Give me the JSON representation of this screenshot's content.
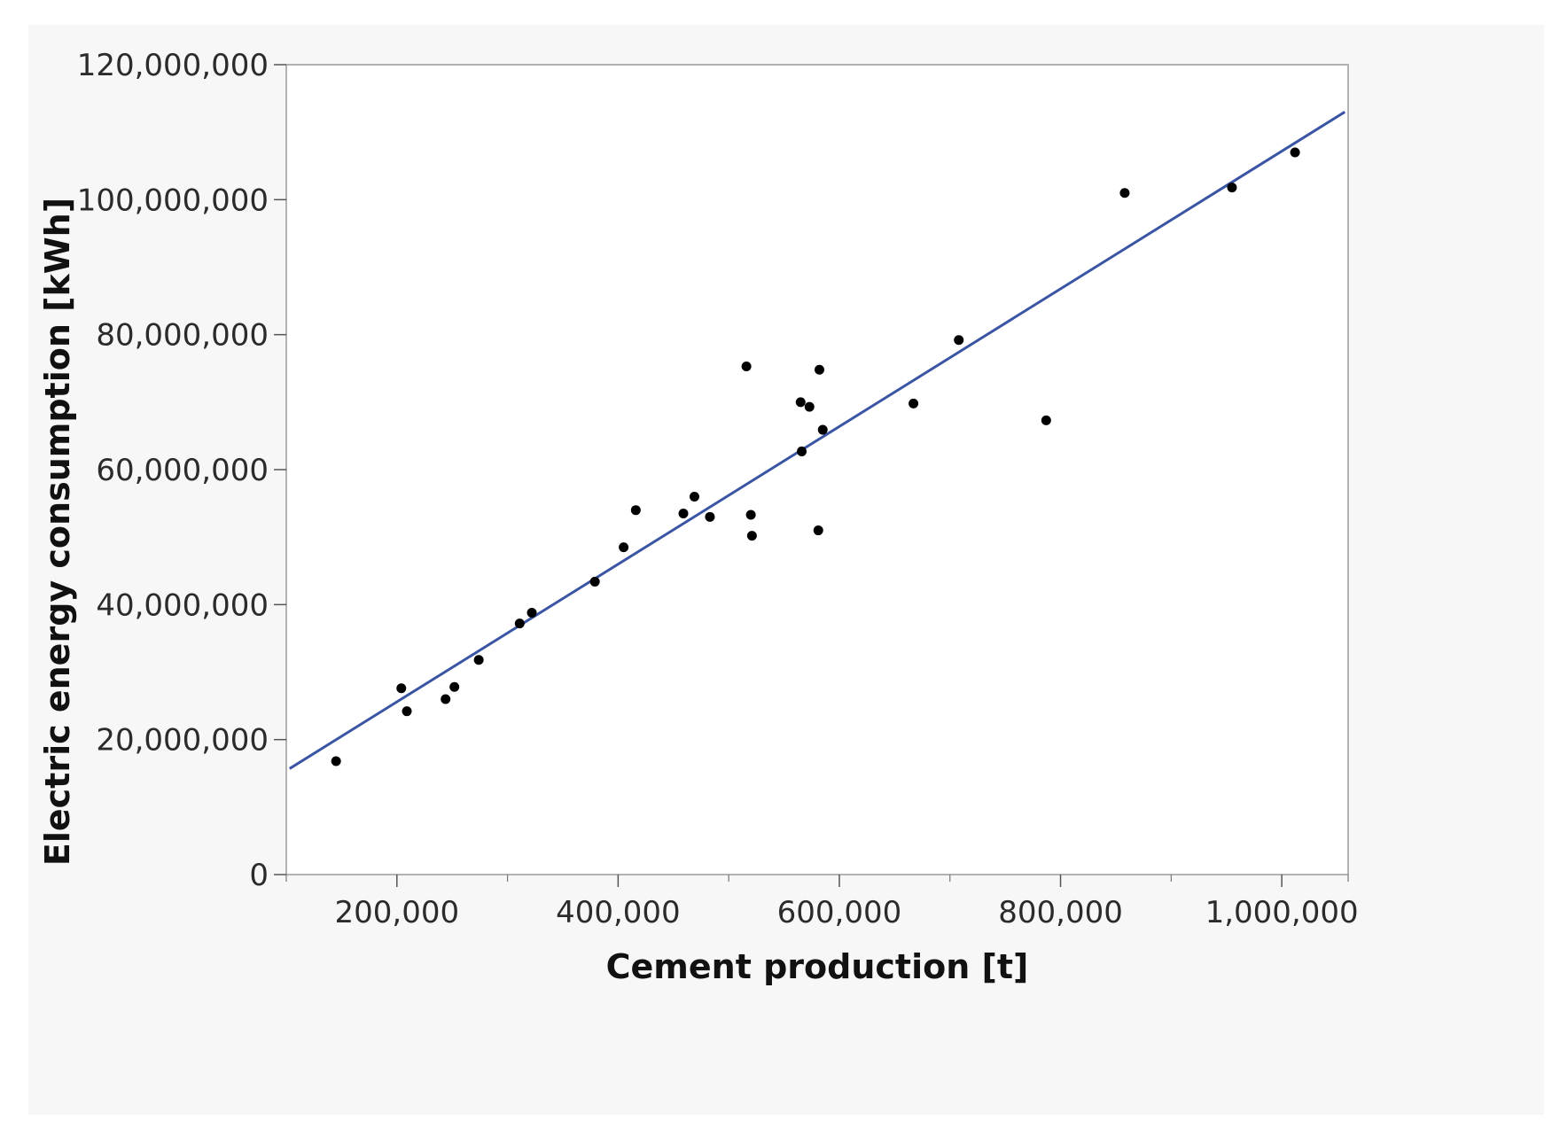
{
  "chart_data": {
    "type": "scatter",
    "title": "",
    "xlabel": "Cement production [t]",
    "ylabel": "Electric energy consumption [kWh]",
    "xlim": [
      100000,
      1060000
    ],
    "ylim": [
      0,
      120000000
    ],
    "x_ticks": [
      200000,
      400000,
      600000,
      800000,
      1000000
    ],
    "x_tick_labels": [
      "200,000",
      "400,000",
      "600,000",
      "800,000",
      "1,000,000"
    ],
    "x_minor_ticks": [
      100000,
      300000,
      500000,
      700000,
      900000
    ],
    "y_ticks": [
      0,
      20000000,
      40000000,
      60000000,
      80000000,
      100000000,
      120000000
    ],
    "y_tick_labels": [
      "0",
      "20,000,000",
      "40,000,000",
      "60,000,000",
      "80,000,000",
      "100,000,000",
      "120,000,000"
    ],
    "grid": false,
    "legend": "none",
    "point_color": "#000000",
    "fit_color": "#3a55a4",
    "series": [
      {
        "x": [
          145000,
          204000,
          209000,
          244000,
          252000,
          274000,
          311000,
          322000,
          379000,
          405000,
          416000,
          459000,
          469000,
          483000,
          516000,
          520000,
          521000,
          565000,
          566000,
          573000,
          581000,
          582000,
          585000,
          667000,
          708000,
          787000,
          858000,
          955000,
          1012000
        ],
        "y": [
          16800000,
          27600000,
          24200000,
          26000000,
          27800000,
          31800000,
          37200000,
          38800000,
          43400000,
          48500000,
          54000000,
          53500000,
          56000000,
          53000000,
          75300000,
          53300000,
          50200000,
          70000000,
          62700000,
          69300000,
          51000000,
          74800000,
          65900000,
          69800000,
          79200000,
          67300000,
          101000000,
          101800000,
          107000000
        ]
      }
    ],
    "fit_line": {
      "x": [
        103000,
        1057000
      ],
      "y": [
        15700000,
        113000000
      ]
    }
  }
}
